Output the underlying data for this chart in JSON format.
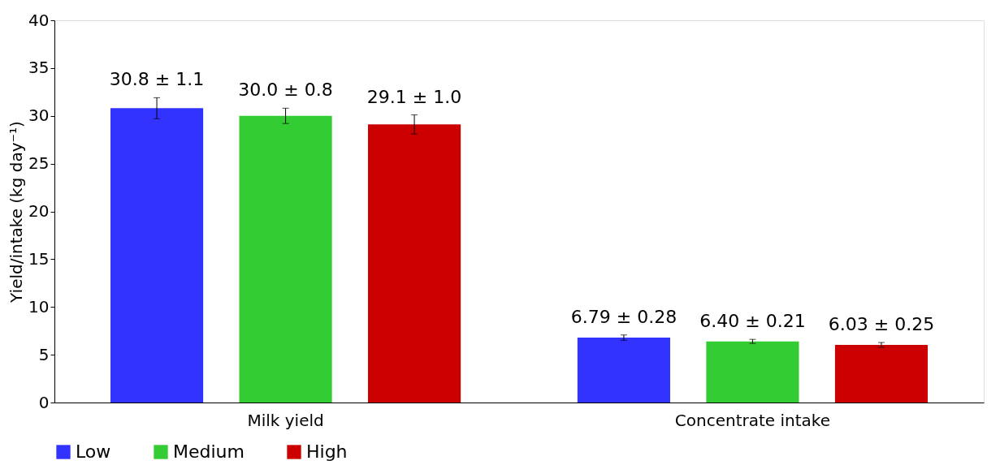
{
  "chart_data": {
    "type": "bar",
    "ylabel": "Yield/intake (kg day⁻¹)",
    "categories": [
      "Milk yield",
      "Concentrate intake"
    ],
    "series": [
      {
        "name": "Low",
        "color": "#3333ff",
        "values": [
          30.8,
          6.79
        ],
        "errors": [
          1.1,
          0.28
        ],
        "value_labels": [
          "30.8 ± 1.1",
          "6.79 ± 0.28"
        ]
      },
      {
        "name": "Medium",
        "color": "#33cc33",
        "values": [
          30.0,
          6.4
        ],
        "errors": [
          0.8,
          0.21
        ],
        "value_labels": [
          "30.0 ± 0.8",
          "6.40 ± 0.21"
        ]
      },
      {
        "name": "High",
        "color": "#cc0000",
        "values": [
          29.1,
          6.03
        ],
        "errors": [
          1.0,
          0.25
        ],
        "value_labels": [
          "29.1 ± 1.0",
          "6.03 ± 0.25"
        ]
      }
    ],
    "ylim": [
      0,
      40
    ],
    "yticks": [
      0,
      5,
      10,
      15,
      20,
      25,
      30,
      35,
      40
    ],
    "grid": false,
    "legend": "bottom"
  }
}
